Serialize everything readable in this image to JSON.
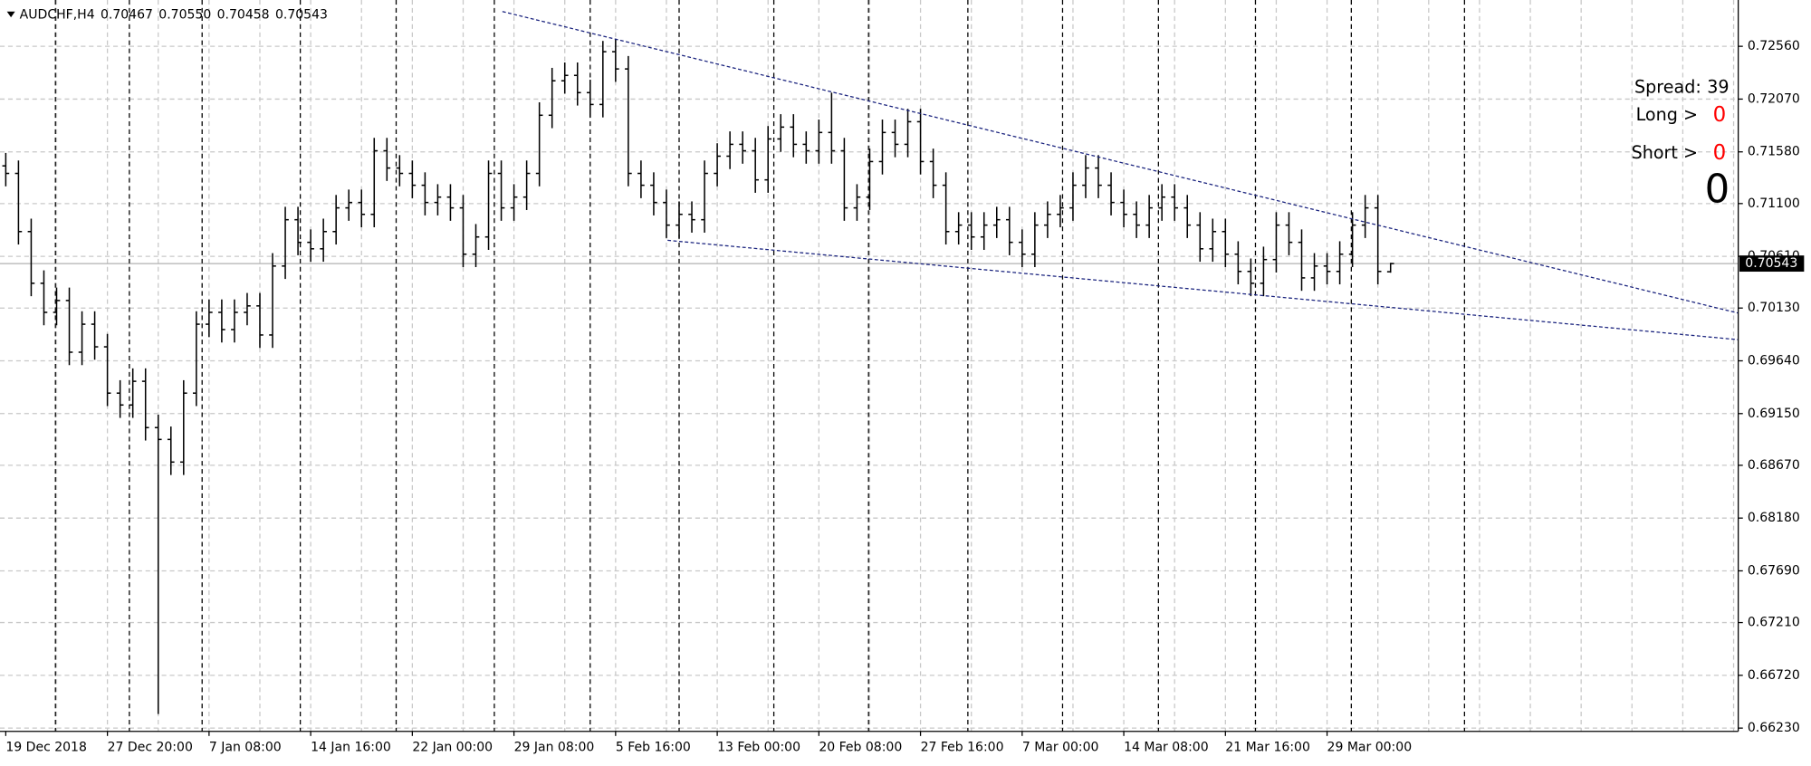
{
  "chart_data": {
    "type": "ohlc",
    "title": "AUDCHF,H4",
    "header_prices": [
      "0.70467",
      "0.70550",
      "0.70458",
      "0.70543"
    ],
    "color": "#000000",
    "grid": true,
    "categories": [
      "19 Dec 2018",
      null,
      null,
      null,
      null,
      null,
      null,
      null,
      "27 Dec 20:00",
      null,
      null,
      null,
      null,
      null,
      null,
      null,
      "7 Jan 08:00",
      null,
      null,
      null,
      null,
      null,
      null,
      null,
      "14 Jan 16:00",
      null,
      null,
      null,
      null,
      null,
      null,
      null,
      "22 Jan 00:00",
      null,
      null,
      null,
      null,
      null,
      null,
      null,
      "29 Jan 08:00",
      null,
      null,
      null,
      null,
      null,
      null,
      null,
      "5 Feb 16:00",
      null,
      null,
      null,
      null,
      null,
      null,
      null,
      "13 Feb 00:00",
      null,
      null,
      null,
      null,
      null,
      null,
      null,
      "20 Feb 08:00",
      null,
      null,
      null,
      null,
      null,
      null,
      null,
      "27 Feb 16:00",
      null,
      null,
      null,
      null,
      null,
      null,
      null,
      "7 Mar 00:00",
      null,
      null,
      null,
      null,
      null,
      null,
      null,
      "14 Mar 08:00",
      null,
      null,
      null,
      null,
      null,
      null,
      null,
      "21 Mar 16:00",
      null,
      null,
      null,
      null,
      null,
      null,
      null,
      "29 Mar 00:00",
      null,
      null,
      null,
      null,
      null
    ],
    "open": [
      0.7145,
      0.7138,
      0.7084,
      0.7036,
      0.7009,
      0.702,
      0.6972,
      0.6998,
      0.6977,
      0.6934,
      0.6923,
      0.6945,
      0.6902,
      0.6891,
      0.687,
      0.6934,
      0.6998,
      0.7009,
      0.6993,
      0.7009,
      0.7015,
      0.6988,
      0.7052,
      0.7095,
      0.7074,
      0.7068,
      0.7084,
      0.7106,
      0.7111,
      0.71,
      0.7159,
      0.7143,
      0.7138,
      0.7127,
      0.7111,
      0.7116,
      0.7106,
      0.7063,
      0.7079,
      0.7138,
      0.7106,
      0.7116,
      0.7138,
      0.7192,
      0.7224,
      0.7229,
      0.7213,
      0.7202,
      0.7251,
      0.7235,
      0.7138,
      0.7127,
      0.7111,
      0.709,
      0.71,
      0.7095,
      0.7138,
      0.7154,
      0.7165,
      0.7159,
      0.7132,
      0.717,
      0.7181,
      0.7165,
      0.7159,
      0.7176,
      0.7159,
      0.7106,
      0.7116,
      0.7149,
      0.7176,
      0.7165,
      0.7186,
      0.7149,
      0.7127,
      0.7084,
      0.709,
      0.7079,
      0.709,
      0.7095,
      0.7074,
      0.7063,
      0.709,
      0.71,
      0.7106,
      0.7127,
      0.7143,
      0.7127,
      0.7111,
      0.71,
      0.709,
      0.7106,
      0.7116,
      0.7106,
      0.709,
      0.7068,
      0.7084,
      0.7063,
      0.7047,
      0.7036,
      0.7058,
      0.709,
      0.7074,
      0.7041,
      0.7052,
      0.7047,
      0.7063,
      0.709,
      0.7106,
      0.70467
    ],
    "high": [
      0.7157,
      0.715,
      0.7096,
      0.7048,
      0.7032,
      0.7032,
      0.701,
      0.701,
      0.6989,
      0.6946,
      0.6957,
      0.6957,
      0.6914,
      0.6903,
      0.6946,
      0.701,
      0.7021,
      0.7021,
      0.7021,
      0.7027,
      0.7027,
      0.7064,
      0.7107,
      0.7107,
      0.7086,
      0.7096,
      0.7118,
      0.7123,
      0.7123,
      0.7171,
      0.7171,
      0.7155,
      0.715,
      0.7139,
      0.7128,
      0.7128,
      0.7118,
      0.7091,
      0.715,
      0.715,
      0.7128,
      0.715,
      0.7204,
      0.7236,
      0.7241,
      0.7241,
      0.7225,
      0.7261,
      0.7263,
      0.7247,
      0.715,
      0.7139,
      0.7123,
      0.7112,
      0.7112,
      0.715,
      0.7166,
      0.7177,
      0.7177,
      0.7171,
      0.7182,
      0.7193,
      0.7193,
      0.7177,
      0.7188,
      0.7213,
      0.7171,
      0.7128,
      0.7161,
      0.7188,
      0.7188,
      0.7198,
      0.7198,
      0.7161,
      0.7139,
      0.7102,
      0.7102,
      0.7102,
      0.7107,
      0.7107,
      0.7086,
      0.7102,
      0.7112,
      0.7118,
      0.7139,
      0.7155,
      0.7155,
      0.7139,
      0.7123,
      0.7112,
      0.7118,
      0.7128,
      0.7128,
      0.7118,
      0.7102,
      0.7096,
      0.7096,
      0.7075,
      0.7059,
      0.707,
      0.7102,
      0.7102,
      0.7086,
      0.7064,
      0.7064,
      0.7075,
      0.7102,
      0.7118,
      0.7118,
      0.7055
    ],
    "low": [
      0.7126,
      0.7072,
      0.7024,
      0.6997,
      0.6997,
      0.696,
      0.696,
      0.6965,
      0.6922,
      0.6911,
      0.6911,
      0.689,
      0.6636,
      0.6858,
      0.6858,
      0.6922,
      0.6986,
      0.6981,
      0.6981,
      0.6997,
      0.6976,
      0.6976,
      0.704,
      0.7062,
      0.7056,
      0.7056,
      0.7072,
      0.7094,
      0.7088,
      0.7088,
      0.7131,
      0.7126,
      0.7115,
      0.7099,
      0.7099,
      0.7094,
      0.7051,
      0.7051,
      0.7067,
      0.7094,
      0.7094,
      0.7104,
      0.7126,
      0.718,
      0.7212,
      0.7201,
      0.719,
      0.719,
      0.7223,
      0.7126,
      0.7115,
      0.7099,
      0.7078,
      0.7078,
      0.7083,
      0.7083,
      0.7126,
      0.7142,
      0.7147,
      0.712,
      0.712,
      0.7158,
      0.7153,
      0.7147,
      0.7147,
      0.7147,
      0.7094,
      0.7094,
      0.7104,
      0.7137,
      0.7153,
      0.7153,
      0.7137,
      0.7115,
      0.7072,
      0.7072,
      0.7067,
      0.7067,
      0.7078,
      0.7062,
      0.7051,
      0.7051,
      0.7078,
      0.7088,
      0.7094,
      0.7115,
      0.7115,
      0.7099,
      0.7088,
      0.7078,
      0.7078,
      0.7094,
      0.7094,
      0.7078,
      0.7056,
      0.7056,
      0.7051,
      0.7035,
      0.7024,
      0.7024,
      0.7046,
      0.7062,
      0.7029,
      0.7029,
      0.7035,
      0.7035,
      0.7051,
      0.7078,
      0.7035,
      0.70458
    ],
    "close": [
      0.7138,
      0.7084,
      0.7036,
      0.7009,
      0.702,
      0.6972,
      0.6998,
      0.6977,
      0.6934,
      0.6923,
      0.6945,
      0.6902,
      0.6891,
      0.687,
      0.6934,
      0.6998,
      0.7009,
      0.6993,
      0.7009,
      0.7015,
      0.6988,
      0.7052,
      0.7095,
      0.7074,
      0.7068,
      0.7084,
      0.7106,
      0.7111,
      0.71,
      0.7159,
      0.7143,
      0.7138,
      0.7127,
      0.7111,
      0.7116,
      0.7106,
      0.7063,
      0.7079,
      0.7138,
      0.7106,
      0.7116,
      0.7138,
      0.7192,
      0.7224,
      0.7229,
      0.7213,
      0.7202,
      0.7251,
      0.7235,
      0.7138,
      0.7127,
      0.7111,
      0.709,
      0.71,
      0.7095,
      0.7138,
      0.7154,
      0.7165,
      0.7159,
      0.7132,
      0.717,
      0.7181,
      0.7165,
      0.7159,
      0.7176,
      0.7159,
      0.7106,
      0.7116,
      0.7149,
      0.7176,
      0.7165,
      0.7186,
      0.7149,
      0.7127,
      0.7084,
      0.709,
      0.7079,
      0.709,
      0.7095,
      0.7074,
      0.7063,
      0.709,
      0.71,
      0.7106,
      0.7127,
      0.7143,
      0.7127,
      0.7111,
      0.71,
      0.709,
      0.7106,
      0.7116,
      0.7106,
      0.709,
      0.7068,
      0.7084,
      0.7063,
      0.7047,
      0.7036,
      0.7058,
      0.709,
      0.7074,
      0.7041,
      0.7052,
      0.7047,
      0.7063,
      0.709,
      0.7106,
      0.7047,
      0.70543
    ],
    "ylim": [
      0.662,
      0.7299
    ],
    "yticks": [
      {
        "value": 0.7256,
        "label": "0.72560"
      },
      {
        "value": 0.7207,
        "label": "0.72070"
      },
      {
        "value": 0.7158,
        "label": "0.71580"
      },
      {
        "value": 0.711,
        "label": "0.71100"
      },
      {
        "value": 0.7061,
        "label": "0.70610"
      },
      {
        "value": 0.7013,
        "label": "0.70130"
      },
      {
        "value": 0.6964,
        "label": "0.69640"
      },
      {
        "value": 0.6915,
        "label": "0.69150"
      },
      {
        "value": 0.6867,
        "label": "0.68670"
      },
      {
        "value": 0.6818,
        "label": "0.68180"
      },
      {
        "value": 0.6769,
        "label": "0.67690"
      },
      {
        "value": 0.6721,
        "label": "0.67210"
      },
      {
        "value": 0.6672,
        "label": "0.66720"
      },
      {
        "value": 0.6623,
        "label": "0.66230"
      }
    ],
    "current_price": {
      "value": 0.70543,
      "label": "0.70543"
    },
    "panel": {
      "spread_label": "Spread:",
      "spread_value": 39,
      "long_label": "Long >",
      "long_value": 0,
      "short_label": "Short >",
      "short_value": 0,
      "total": 0
    }
  }
}
